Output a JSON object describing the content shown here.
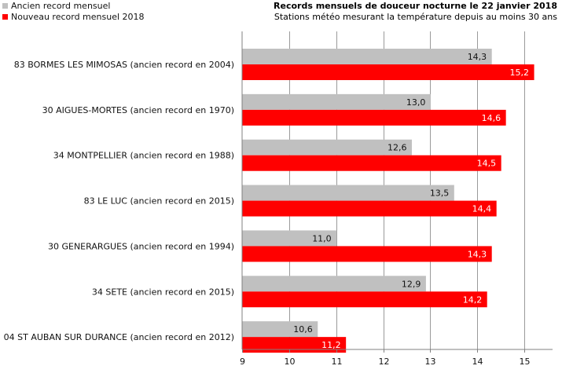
{
  "chart_data": {
    "type": "bar",
    "orientation": "horizontal",
    "title": "Records mensuels de douceur nocturne le 22 janvier 2018",
    "subtitle": "Stations météo mesurant la température depuis au moins 30 ans",
    "categories": [
      "83 BORMES LES MIMOSAS (ancien record en 2004)",
      "30 AIGUES-MORTES (ancien record en 1970)",
      "34 MONTPELLIER (ancien record en 1988)",
      "83 LE LUC (ancien record en 2015)",
      "30 GENERARGUES (ancien record en 1994)",
      "34 SETE (ancien record en 2015)",
      "04 ST AUBAN SUR DURANCE (ancien record en 2012)"
    ],
    "series": [
      {
        "name": "Ancien record mensuel",
        "color": "#c0c0c0",
        "values": [
          14.3,
          13.0,
          12.6,
          13.5,
          11.0,
          12.9,
          10.6
        ],
        "labels": [
          "14,3",
          "13,0",
          "12,6",
          "13,5",
          "11,0",
          "12,9",
          "10,6"
        ]
      },
      {
        "name": "Nouveau record mensuel 2018",
        "color": "#ff0000",
        "values": [
          15.2,
          14.6,
          14.5,
          14.4,
          14.3,
          14.2,
          11.2
        ],
        "labels": [
          "15,2",
          "14,6",
          "14,5",
          "14,4",
          "14,3",
          "14,2",
          "11,2"
        ]
      }
    ],
    "xlim": [
      9,
      15.6
    ],
    "xticks": [
      9,
      10,
      11,
      12,
      13,
      14,
      15
    ],
    "xtick_labels": [
      "9",
      "10",
      "11",
      "12",
      "13",
      "14",
      "15"
    ],
    "legend": "top-left",
    "grid": "vertical"
  }
}
